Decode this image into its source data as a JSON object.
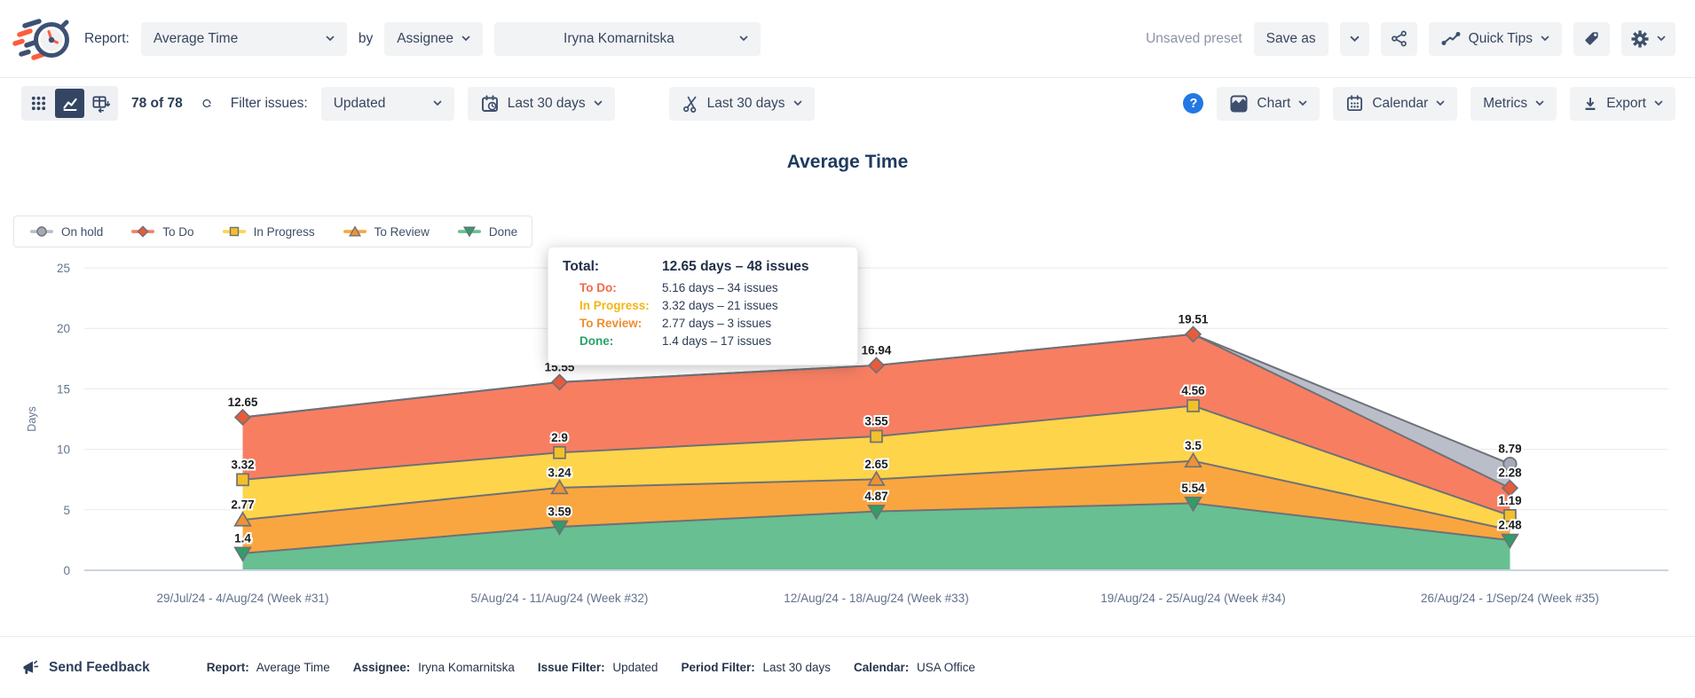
{
  "header": {
    "report_label": "Report:",
    "report_select": "Average Time",
    "by_label": "by",
    "group_select": "Assignee",
    "assignee_select": "Iryna Komarnitska",
    "unsaved_preset": "Unsaved preset",
    "save_as": "Save as",
    "quick_tips": "Quick Tips"
  },
  "toolbar": {
    "issue_count": "78 of 78",
    "filter_label": "Filter issues:",
    "issue_filter": "Updated",
    "date_filter": "Last 30 days",
    "sprint_filter": "Last 30 days",
    "help": "?",
    "chart_button": "Chart",
    "calendar_button": "Calendar",
    "metrics_button": "Metrics",
    "export_button": "Export"
  },
  "tooltip": {
    "title_label": "Total:",
    "title_value": "12.65 days – 48 issues",
    "rows": [
      {
        "label": "To Do:",
        "value": "5.16 days – 34 issues",
        "color": "#f26a4b"
      },
      {
        "label": "In Progress:",
        "value": "3.32 days – 21 issues",
        "color": "#efb616"
      },
      {
        "label": "To Review:",
        "value": "2.77 days – 3 issues",
        "color": "#ee8d2e"
      },
      {
        "label": "Done:",
        "value": "1.4 days – 17 issues",
        "color": "#27a266"
      }
    ]
  },
  "chart_data": {
    "type": "area",
    "stacked": true,
    "title": "Average Time",
    "ylabel": "Days",
    "ylim": [
      0,
      25
    ],
    "yticks": [
      0,
      5,
      10,
      15,
      20,
      25
    ],
    "grid": true,
    "legend_position": "top-left",
    "categories": [
      "29/Jul/24 - 4/Aug/24 (Week #31)",
      "5/Aug/24 - 11/Aug/24 (Week #32)",
      "12/Aug/24 - 18/Aug/24 (Week #33)",
      "19/Aug/24 - 25/Aug/24 (Week #34)",
      "26/Aug/24 - 1/Sep/24 (Week #35)"
    ],
    "series": [
      {
        "key": "done",
        "name": "Done",
        "values": [
          1.4,
          3.59,
          4.87,
          5.54,
          2.48
        ],
        "point_labels": [
          "1.4",
          "3.59",
          "4.87",
          "5.54",
          "2.48"
        ],
        "area_color": "#67bf92",
        "marker": "triangle-down",
        "marker_color": "#2f9e68"
      },
      {
        "key": "to_review",
        "name": "To Review",
        "values": [
          2.77,
          3.24,
          2.65,
          3.5,
          0.85
        ],
        "point_labels": [
          "2.77",
          "3.24",
          "2.65",
          "3.5",
          null
        ],
        "area_color": "#f9a640",
        "marker": "triangle-up",
        "marker_color": "#ef9234"
      },
      {
        "key": "in_progress",
        "name": "In Progress",
        "values": [
          3.32,
          2.9,
          3.55,
          4.56,
          1.19
        ],
        "point_labels": [
          "3.32",
          "2.9",
          "3.55",
          "4.56",
          "1.19"
        ],
        "area_color": "#fdd44a",
        "marker": "square",
        "marker_color": "#f2c029"
      },
      {
        "key": "to_do",
        "name": "To Do",
        "values": [
          5.16,
          5.82,
          5.87,
          5.91,
          2.28
        ],
        "point_labels": [
          "12.65",
          "15.55",
          "16.94",
          "19.51",
          "2.28"
        ],
        "area_color": "#f87e62",
        "marker": "diamond",
        "marker_color": "#e85b3a"
      },
      {
        "key": "on_hold",
        "name": "On hold",
        "values": [
          0,
          0,
          0,
          0,
          1.99
        ],
        "point_labels": [
          null,
          null,
          null,
          null,
          "8.79"
        ],
        "area_color": "#b9bec9",
        "marker": "circle",
        "marker_color": "#a4aab6"
      }
    ],
    "legend_order": [
      "on_hold",
      "to_do",
      "in_progress",
      "to_review",
      "done"
    ],
    "totals": [
      12.65,
      15.55,
      16.94,
      19.51,
      8.79
    ]
  },
  "footer": {
    "send_feedback": "Send Feedback",
    "meta": [
      {
        "label": "Report:",
        "value": "Average Time"
      },
      {
        "label": "Assignee:",
        "value": "Iryna Komarnitska"
      },
      {
        "label": "Issue Filter:",
        "value": "Updated"
      },
      {
        "label": "Period Filter:",
        "value": "Last 30 days"
      },
      {
        "label": "Calendar:",
        "value": "USA Office"
      }
    ]
  },
  "colors": {
    "accent_navy": "#344563",
    "help_blue": "#2478e4",
    "button_bg": "#f2f3f5",
    "area_stroke": "#6e7177"
  }
}
